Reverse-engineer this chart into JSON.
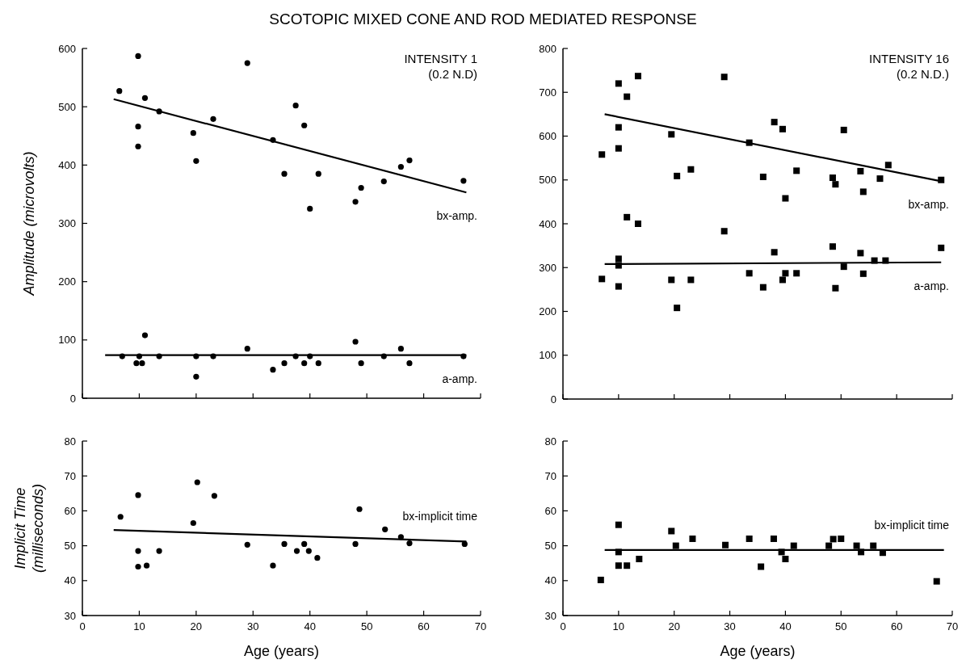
{
  "chart_data": [
    {
      "type": "scatter",
      "title": "SCOTOPIC MIXED CONE AND ROD MEDIATED RESPONSE",
      "ylabel": "Amplitude (microvolts)",
      "annotations": [
        "INTENSITY 1",
        "(0.2 N.D)"
      ],
      "marker": "circle",
      "tick_labels": "y",
      "xlim": [
        0,
        70
      ],
      "xticks": [
        0,
        10,
        20,
        30,
        40,
        50,
        60,
        70
      ],
      "ylim": [
        0,
        600
      ],
      "yticks": [
        0,
        100,
        200,
        300,
        400,
        500,
        600
      ],
      "series": [
        {
          "name": "bx-amp.",
          "color": "#000000",
          "x": [
            6.5,
            9.8,
            9.8,
            9.8,
            11,
            13.5,
            19.5,
            20,
            23,
            29,
            33.5,
            35.5,
            37.5,
            39,
            40,
            41.5,
            48,
            49,
            53,
            56,
            57.5,
            67
          ],
          "values": [
            527,
            587,
            466,
            432,
            515,
            492,
            455,
            407,
            479,
            575,
            443,
            385,
            502,
            468,
            325,
            385,
            337,
            361,
            372,
            397,
            408,
            373
          ]
        },
        {
          "type": "line",
          "marker": "none",
          "color": "#000000",
          "x": [
            5.5,
            67.5
          ],
          "values": [
            513,
            353
          ]
        },
        {
          "name": "a-amp.",
          "color": "#000000",
          "x": [
            7,
            10,
            9.5,
            10.5,
            11,
            13.5,
            20,
            20,
            23,
            29,
            33.5,
            35.5,
            37.5,
            39,
            40,
            41.5,
            48,
            49,
            53,
            56,
            57.5,
            67
          ],
          "values": [
            72,
            72,
            60,
            60,
            108,
            72,
            72,
            37,
            72,
            85,
            49,
            60,
            72,
            60,
            72,
            60,
            97,
            60,
            72,
            85,
            60,
            72
          ]
        },
        {
          "type": "line",
          "marker": "none",
          "color": "#000000",
          "x": [
            4,
            67.5
          ],
          "values": [
            74,
            74
          ]
        }
      ]
    },
    {
      "type": "scatter",
      "annotations": [
        "INTENSITY 16",
        "(0.2 N.D.)"
      ],
      "marker": "square",
      "tick_labels": "y",
      "xlim": [
        0,
        70
      ],
      "xticks": [
        0,
        10,
        20,
        30,
        40,
        50,
        60,
        70
      ],
      "ylim": [
        0,
        800
      ],
      "yticks": [
        0,
        100,
        200,
        300,
        400,
        500,
        600,
        700,
        800
      ],
      "series": [
        {
          "name": "bx-amp.",
          "color": "#000000",
          "x": [
            7,
            10,
            10,
            10,
            11.5,
            13.5,
            19.5,
            20.5,
            23,
            29,
            33.5,
            36,
            38,
            39.5,
            40,
            42,
            48.5,
            49,
            50.5,
            53.5,
            54,
            57,
            58.5,
            68,
            11.5,
            13.5,
            29
          ],
          "values": [
            558,
            720,
            620,
            572,
            690,
            737,
            604,
            509,
            524,
            735,
            585,
            507,
            632,
            616,
            458,
            521,
            505,
            490,
            614,
            520,
            473,
            503,
            534,
            500,
            415,
            400,
            383
          ]
        },
        {
          "type": "line",
          "marker": "none",
          "color": "#000000",
          "x": [
            7.5,
            68
          ],
          "values": [
            650,
            497
          ]
        },
        {
          "name": "a-amp.",
          "color": "#000000",
          "x": [
            7,
            10,
            10,
            10,
            19.5,
            20.5,
            23,
            33.5,
            36,
            38,
            39.5,
            40,
            42,
            48.5,
            49,
            50.5,
            53.5,
            54,
            56,
            58,
            68
          ],
          "values": [
            274,
            320,
            305,
            257,
            272,
            208,
            272,
            287,
            255,
            335,
            272,
            287,
            287,
            348,
            253,
            302,
            333,
            286,
            316,
            316,
            345
          ]
        },
        {
          "type": "line",
          "marker": "none",
          "color": "#000000",
          "x": [
            7.5,
            68
          ],
          "values": [
            308,
            312
          ]
        }
      ]
    },
    {
      "type": "scatter",
      "xlabel": "Age (years)",
      "ylabel": "Implicit Time (milliseconds)",
      "marker": "circle",
      "xlim": [
        0,
        70
      ],
      "xticks": [
        0,
        10,
        20,
        30,
        40,
        50,
        60,
        70
      ],
      "ylim": [
        30,
        80
      ],
      "yticks": [
        30,
        40,
        50,
        60,
        70,
        80
      ],
      "series": [
        {
          "name": "bx-implicit time",
          "color": "#000000",
          "x": [
            6.7,
            9.8,
            9.8,
            9.8,
            11.3,
            13.5,
            19.5,
            20.2,
            23.2,
            29,
            33.5,
            35.5,
            37.7,
            39,
            39.8,
            41.3,
            48,
            48.7,
            53.2,
            56,
            57.5,
            67.2
          ],
          "values": [
            58.3,
            64.5,
            48.5,
            44,
            44.3,
            48.5,
            56.5,
            68.2,
            64.3,
            50.3,
            44.3,
            50.5,
            48.5,
            50.5,
            48.5,
            46.5,
            50.5,
            60.5,
            54.7,
            52.5,
            50.7,
            50.5
          ]
        },
        {
          "type": "line",
          "marker": "none",
          "color": "#000000",
          "x": [
            5.5,
            67.5
          ],
          "values": [
            54.5,
            51.2
          ]
        }
      ]
    },
    {
      "type": "scatter",
      "xlabel": "Age (years)",
      "marker": "square",
      "xlim": [
        0,
        70
      ],
      "xticks": [
        0,
        10,
        20,
        30,
        40,
        50,
        60,
        70
      ],
      "ylim": [
        30,
        80
      ],
      "yticks": [
        30,
        40,
        50,
        60,
        70,
        80
      ],
      "series": [
        {
          "name": "bx-implicit time",
          "color": "#000000",
          "x": [
            6.8,
            10,
            10,
            10,
            11.5,
            13.7,
            19.5,
            20.3,
            23.3,
            29.2,
            33.5,
            35.6,
            37.9,
            39.3,
            40,
            41.5,
            47.8,
            48.6,
            50,
            52.8,
            53.6,
            55.8,
            57.5,
            67.2
          ],
          "values": [
            40.2,
            56,
            48.2,
            44.3,
            44.3,
            46.2,
            54.2,
            50,
            52,
            50.2,
            52,
            44,
            52,
            48.2,
            46.2,
            50,
            50,
            51.9,
            52,
            50,
            48.2,
            50,
            48,
            39.8
          ]
        },
        {
          "type": "line",
          "marker": "none",
          "color": "#000000",
          "x": [
            7.5,
            68.5
          ],
          "values": [
            48.8,
            48.8
          ]
        }
      ]
    }
  ]
}
